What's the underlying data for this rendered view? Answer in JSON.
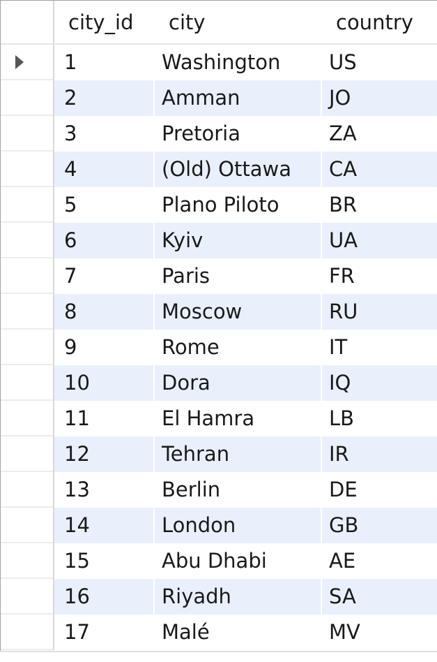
{
  "table": {
    "columns": [
      "city_id",
      "city",
      "country"
    ],
    "rows": [
      {
        "city_id": "1",
        "city": "Washington",
        "country": "US",
        "current": true
      },
      {
        "city_id": "2",
        "city": "Amman",
        "country": "JO"
      },
      {
        "city_id": "3",
        "city": "Pretoria",
        "country": "ZA"
      },
      {
        "city_id": "4",
        "city": "(Old) Ottawa",
        "country": "CA"
      },
      {
        "city_id": "5",
        "city": "Plano Piloto",
        "country": "BR"
      },
      {
        "city_id": "6",
        "city": "Kyiv",
        "country": "UA"
      },
      {
        "city_id": "7",
        "city": "Paris",
        "country": "FR"
      },
      {
        "city_id": "8",
        "city": "Moscow",
        "country": "RU"
      },
      {
        "city_id": "9",
        "city": "Rome",
        "country": "IT"
      },
      {
        "city_id": "10",
        "city": "Dora",
        "country": "IQ"
      },
      {
        "city_id": "11",
        "city": "El Hamra",
        "country": "LB"
      },
      {
        "city_id": "12",
        "city": "Tehran",
        "country": "IR"
      },
      {
        "city_id": "13",
        "city": "Berlin",
        "country": "DE"
      },
      {
        "city_id": "14",
        "city": "London",
        "country": "GB"
      },
      {
        "city_id": "15",
        "city": "Abu Dhabi",
        "country": "AE"
      },
      {
        "city_id": "16",
        "city": "Riyadh",
        "country": "SA"
      },
      {
        "city_id": "17",
        "city": "Malé",
        "country": "MV"
      }
    ]
  },
  "colors": {
    "alt_row": "#e9f0fb",
    "grid_line": "#e6e6e6",
    "row_pointer": "#555555"
  },
  "icons": {
    "current_row": "row-pointer-icon"
  }
}
